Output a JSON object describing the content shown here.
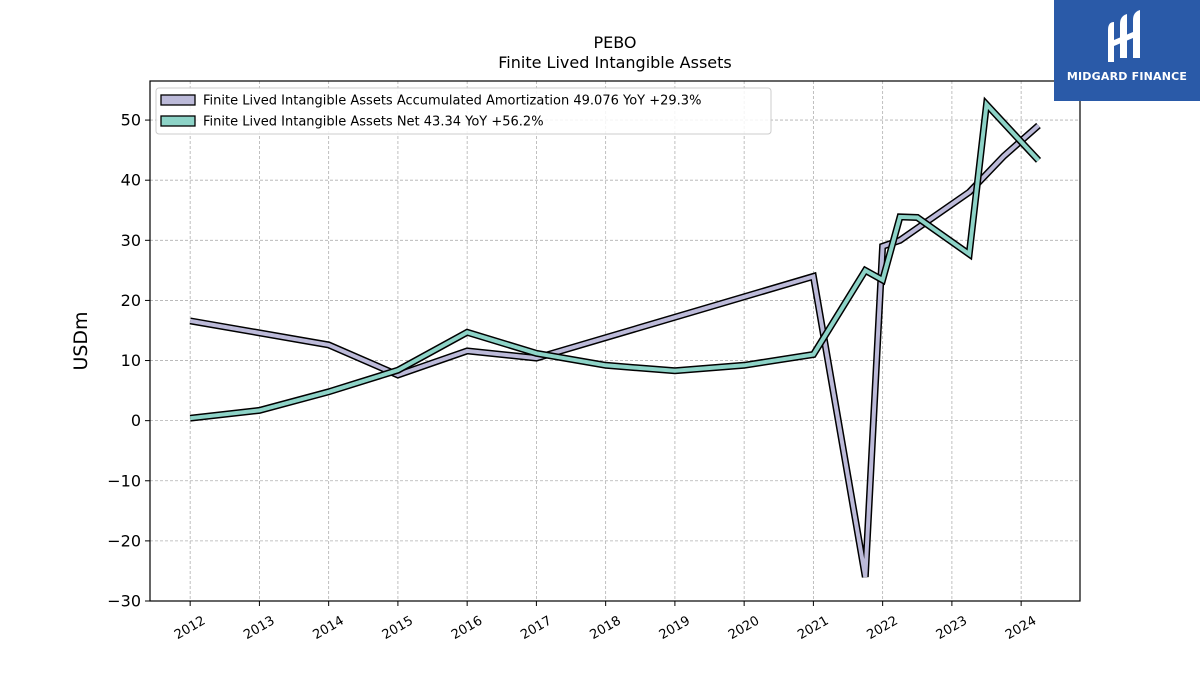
{
  "brand": {
    "name": "MIDGARD FINANCE",
    "color": "#2a5aa8"
  },
  "chart_data": {
    "type": "line",
    "title": "PEBO",
    "subtitle": "Finite Lived Intangible Assets",
    "ylabel": "USDm",
    "xlabel": "",
    "ylim": [
      -30,
      56.5
    ],
    "yticks": [
      -30,
      -20,
      -10,
      0,
      10,
      20,
      30,
      40,
      50
    ],
    "ytick_labels": [
      "−30",
      "−20",
      "−10",
      "0",
      "10",
      "20",
      "30",
      "40",
      "50"
    ],
    "xlim": [
      2011.42,
      2024.85
    ],
    "xticks": [
      2012,
      2013,
      2014,
      2015,
      2016,
      2017,
      2018,
      2019,
      2020,
      2021,
      2022,
      2023,
      2024
    ],
    "xtick_labels": [
      "2012",
      "2013",
      "2014",
      "2015",
      "2016",
      "2017",
      "2018",
      "2019",
      "2020",
      "2021",
      "2022",
      "2023",
      "2024"
    ],
    "grid": true,
    "legend_position": "top-left",
    "series": [
      {
        "name": "Finite Lived Intangible Assets Accumulated Amortization  49.076 YoY +29.3%",
        "color": "#bcbad9",
        "x": [
          2012.0,
          2014.0,
          2015.0,
          2016.0,
          2017.0,
          2021.0,
          2021.75,
          2022.0,
          2022.25,
          2023.25,
          2023.75,
          2024.25
        ],
        "y": [
          16.6,
          12.6,
          7.6,
          11.6,
          10.4,
          24.0,
          -26.0,
          29.0,
          30.0,
          38.0,
          44.0,
          49.1
        ]
      },
      {
        "name": "Finite Lived Intangible Assets Net  43.34 YoY +56.2%",
        "color": "#8dd3c7",
        "x": [
          2012.0,
          2013.0,
          2014.0,
          2015.0,
          2016.0,
          2017.0,
          2018.0,
          2019.0,
          2020.0,
          2021.0,
          2021.75,
          2022.0,
          2022.25,
          2022.5,
          2023.25,
          2023.5,
          2024.0,
          2024.25
        ],
        "y": [
          0.4,
          1.7,
          4.8,
          8.4,
          14.7,
          11.2,
          9.2,
          8.3,
          9.2,
          11.0,
          25.0,
          23.4,
          33.9,
          33.8,
          27.7,
          52.6,
          46.4,
          43.3
        ]
      }
    ]
  }
}
